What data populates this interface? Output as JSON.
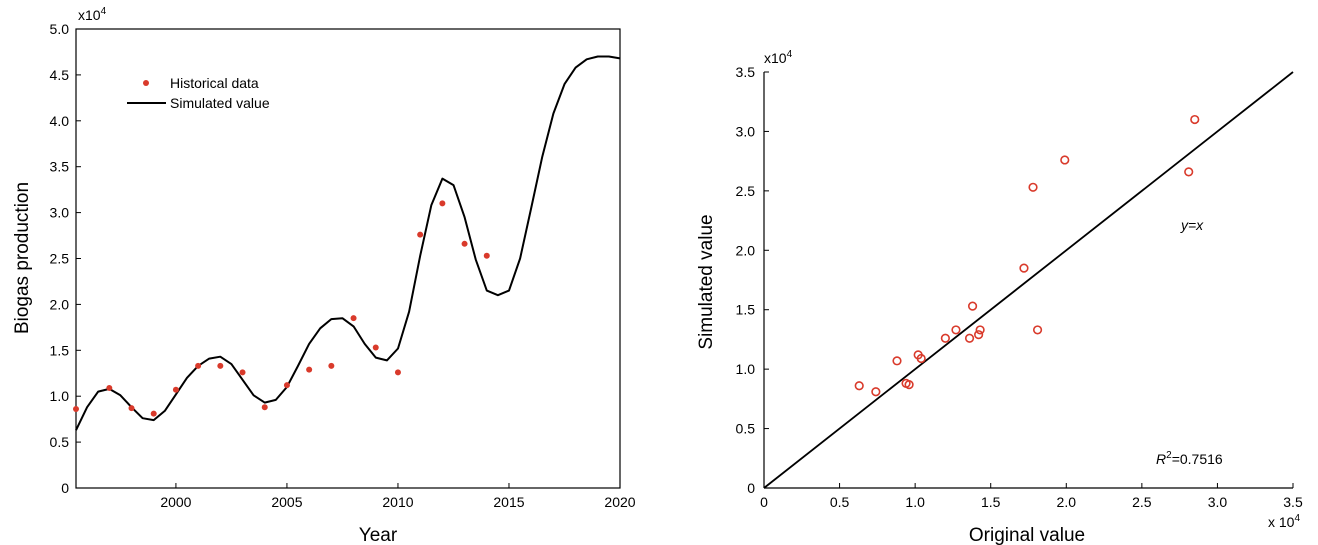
{
  "chart_data": [
    {
      "type": "line",
      "xlabel": "Year",
      "ylabel": "Biogas production",
      "y_scale_label": "x10",
      "y_scale_exp": "4",
      "xlim": [
        1995.5,
        2020
      ],
      "ylim": [
        0,
        50000
      ],
      "x_ticks": [
        2000,
        2005,
        2010,
        2015,
        2020
      ],
      "y_ticks": [
        0,
        5000,
        10000,
        15000,
        20000,
        25000,
        30000,
        35000,
        40000,
        45000,
        50000
      ],
      "y_tick_labels": [
        "0",
        "0.5",
        "1.0",
        "1.5",
        "2.0",
        "2.5",
        "3.0",
        "3.5",
        "4.0",
        "4.5",
        "5.0"
      ],
      "legend_position": "top-left",
      "grid": false,
      "series": [
        {
          "name": "Historical data",
          "kind": "scatter",
          "marker": "dot",
          "color": "#d93a2b",
          "x": [
            1995.5,
            1997,
            1998,
            1999,
            2000,
            2001,
            2002,
            2003,
            2004,
            2005,
            2006,
            2007,
            2008,
            2009,
            2010,
            2011,
            2012,
            2013,
            2014
          ],
          "y": [
            8600,
            10900,
            8700,
            8100,
            10700,
            13300,
            13300,
            12600,
            8800,
            11200,
            12900,
            13300,
            18500,
            15300,
            12600,
            27600,
            31000,
            26600,
            25300
          ]
        },
        {
          "name": "Simulated value",
          "kind": "line",
          "color": "#000000",
          "x": [
            1995.5,
            1996,
            1996.5,
            1997,
            1997.5,
            1998,
            1998.5,
            1999,
            1999.5,
            2000,
            2000.5,
            2001,
            2001.5,
            2002,
            2002.5,
            2003,
            2003.5,
            2004,
            2004.5,
            2005,
            2005.5,
            2006,
            2006.5,
            2007,
            2007.5,
            2008,
            2008.5,
            2009,
            2009.5,
            2010,
            2010.5,
            2011,
            2011.5,
            2012,
            2012.5,
            2013,
            2013.5,
            2014,
            2014.5,
            2015,
            2015.5,
            2016,
            2016.5,
            2017,
            2017.5,
            2018,
            2018.5,
            2019,
            2019.5,
            2020
          ],
          "y": [
            6300,
            8800,
            10500,
            10800,
            10100,
            8800,
            7600,
            7400,
            8400,
            10200,
            12000,
            13300,
            14100,
            14300,
            13500,
            11800,
            10100,
            9300,
            9600,
            11000,
            13300,
            15700,
            17400,
            18400,
            18500,
            17600,
            15700,
            14200,
            13900,
            15200,
            19200,
            25300,
            30800,
            33700,
            33000,
            29500,
            24900,
            21500,
            21000,
            21500,
            25000,
            30500,
            36100,
            40800,
            44000,
            45800,
            46700,
            47000,
            47000,
            46800
          ]
        }
      ]
    },
    {
      "type": "scatter",
      "xlabel": "Original value",
      "ylabel": "Simulated value",
      "x_scale_label": "x 10",
      "x_scale_exp": "4",
      "y_scale_label": "x10",
      "y_scale_exp": "4",
      "xlim": [
        0,
        35000
      ],
      "ylim": [
        0,
        35000
      ],
      "x_ticks": [
        0,
        5000,
        10000,
        15000,
        20000,
        25000,
        30000,
        35000
      ],
      "x_tick_labels": [
        "0",
        "0.5",
        "1.0",
        "1.5",
        "2.0",
        "2.5",
        "3.0",
        "3.5"
      ],
      "y_ticks": [
        0,
        5000,
        10000,
        15000,
        20000,
        25000,
        30000,
        35000
      ],
      "y_tick_labels": [
        "0",
        "0.5",
        "1.0",
        "1.5",
        "2.0",
        "2.5",
        "3.0",
        "3.5"
      ],
      "grid": false,
      "reference_line_label": "y=x",
      "r2_label": "R",
      "r2_sup": "2",
      "r2_value": "=0.7516",
      "points": {
        "marker": "open-circle",
        "color": "#d93a2b",
        "x": [
          6300,
          7400,
          8800,
          9400,
          9600,
          10200,
          10400,
          12000,
          12700,
          13600,
          13800,
          14200,
          14300,
          17200,
          17800,
          18100,
          19900,
          28100,
          28500
        ],
        "y": [
          8600,
          8100,
          10700,
          8800,
          8700,
          11200,
          10900,
          12600,
          13300,
          12600,
          15300,
          12900,
          13300,
          18500,
          25300,
          13300,
          27600,
          26600,
          31000
        ]
      }
    }
  ]
}
